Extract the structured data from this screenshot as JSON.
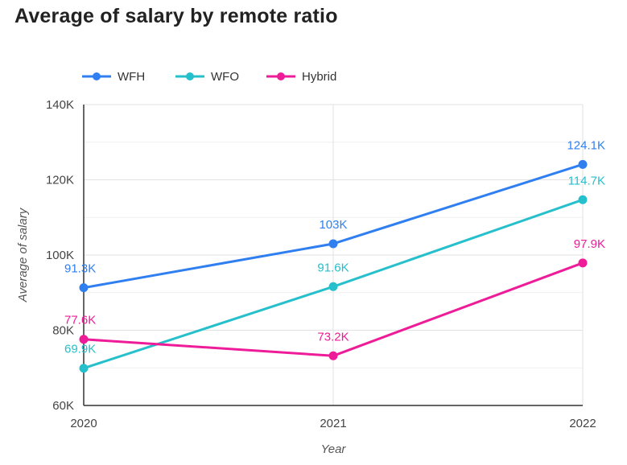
{
  "chart_data": {
    "type": "line",
    "title": "Average of salary by remote ratio",
    "xlabel": "Year",
    "ylabel": "Average of salary",
    "categories": [
      "2020",
      "2021",
      "2022"
    ],
    "ylim": [
      60000,
      140000
    ],
    "yticks": [
      {
        "value": 60000,
        "label": "60K"
      },
      {
        "value": 80000,
        "label": "80K"
      },
      {
        "value": 100000,
        "label": "100K"
      },
      {
        "value": 120000,
        "label": "120K"
      },
      {
        "value": 140000,
        "label": "140K"
      }
    ],
    "grid": true,
    "legend_position": "top-left",
    "series": [
      {
        "name": "WFH",
        "color": "#2f7ff0",
        "values": [
          91300,
          103000,
          124100
        ],
        "labels": [
          "91.3K",
          "103K",
          "124.1K"
        ]
      },
      {
        "name": "WFO",
        "color": "#26bfcc",
        "values": [
          69900,
          91600,
          114700
        ],
        "labels": [
          "69.9K",
          "91.6K",
          "114.7K"
        ]
      },
      {
        "name": "Hybrid",
        "color": "#ee1c98",
        "values": [
          77600,
          73200,
          97900
        ],
        "labels": [
          "77.6K",
          "73.2K",
          "97.9K"
        ]
      }
    ]
  }
}
